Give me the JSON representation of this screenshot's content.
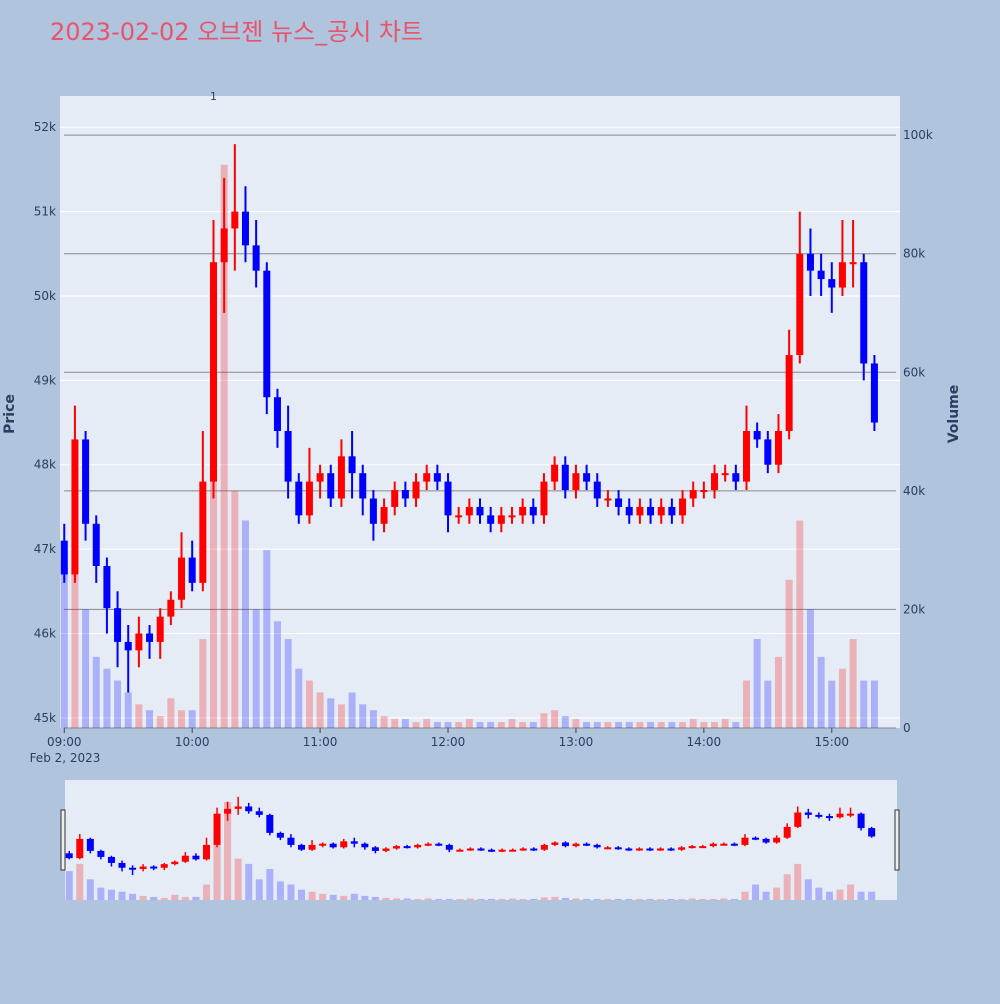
{
  "chart_data": {
    "type": "candlestick",
    "title": "2023-02-02 오브젠 뉴스_공시 차트",
    "y_label": "Price",
    "y2_label": "Volume",
    "x_date_label": "Feb 2, 2023",
    "increasing_color": "#ff0000",
    "decreasing_color": "#0000ff",
    "annotations": [
      {
        "text": "1",
        "x": "10:10"
      }
    ],
    "x": [
      "09:00",
      "09:05",
      "09:10",
      "09:15",
      "09:20",
      "09:25",
      "09:30",
      "09:35",
      "09:40",
      "09:45",
      "09:50",
      "09:55",
      "10:00",
      "10:05",
      "10:10",
      "10:15",
      "10:20",
      "10:25",
      "10:30",
      "10:35",
      "10:40",
      "10:45",
      "10:50",
      "10:55",
      "11:00",
      "11:05",
      "11:10",
      "11:15",
      "11:20",
      "11:25",
      "11:30",
      "11:35",
      "11:40",
      "11:45",
      "11:50",
      "11:55",
      "12:00",
      "12:05",
      "12:10",
      "12:15",
      "12:20",
      "12:25",
      "12:30",
      "12:35",
      "12:40",
      "12:45",
      "12:50",
      "12:55",
      "13:00",
      "13:05",
      "13:10",
      "13:15",
      "13:20",
      "13:25",
      "13:30",
      "13:35",
      "13:40",
      "13:45",
      "13:50",
      "13:55",
      "14:00",
      "14:05",
      "14:10",
      "14:15",
      "14:20",
      "14:25",
      "14:30",
      "14:35",
      "14:40",
      "14:45",
      "14:50",
      "14:55",
      "15:00",
      "15:05",
      "15:10",
      "15:15",
      "15:20"
    ],
    "open": [
      47100,
      46700,
      48300,
      47300,
      46800,
      46300,
      45900,
      45800,
      46000,
      45900,
      46200,
      46400,
      46900,
      46600,
      47800,
      50400,
      50800,
      51000,
      50600,
      50300,
      48800,
      48400,
      47800,
      47400,
      47800,
      47900,
      47600,
      48100,
      47900,
      47600,
      47300,
      47500,
      47700,
      47600,
      47800,
      47900,
      47800,
      47400,
      47400,
      47500,
      47400,
      47300,
      47400,
      47400,
      47500,
      47400,
      47800,
      48000,
      47700,
      47900,
      47800,
      47600,
      47600,
      47500,
      47400,
      47500,
      47400,
      47500,
      47400,
      47600,
      47700,
      47700,
      47900,
      47900,
      47800,
      48400,
      48300,
      48000,
      48400,
      49300,
      50500,
      50300,
      50200,
      50100,
      50400,
      50400,
      49200
    ],
    "high": [
      47300,
      48700,
      48400,
      47400,
      46900,
      46500,
      46100,
      46200,
      46100,
      46300,
      46500,
      47200,
      47100,
      48400,
      50900,
      51400,
      51800,
      51300,
      50900,
      50400,
      48900,
      48700,
      47900,
      48200,
      48000,
      48000,
      48300,
      48400,
      48000,
      47700,
      47600,
      47800,
      47800,
      47900,
      48000,
      48000,
      47900,
      47500,
      47600,
      47600,
      47500,
      47500,
      47500,
      47600,
      47600,
      47900,
      48100,
      48100,
      48000,
      48000,
      47900,
      47700,
      47700,
      47600,
      47600,
      47600,
      47600,
      47600,
      47700,
      47800,
      47800,
      48000,
      48000,
      48000,
      48700,
      48500,
      48400,
      48600,
      49600,
      51000,
      50800,
      50500,
      50400,
      50900,
      50900,
      50500,
      49300
    ],
    "low": [
      46600,
      46600,
      47100,
      46600,
      46000,
      45600,
      45300,
      45600,
      45700,
      45700,
      46100,
      46300,
      46500,
      46500,
      47600,
      49800,
      50300,
      50400,
      50100,
      48600,
      48200,
      47600,
      47300,
      47300,
      47600,
      47500,
      47500,
      47600,
      47400,
      47100,
      47200,
      47400,
      47500,
      47500,
      47700,
      47700,
      47200,
      47300,
      47300,
      47300,
      47200,
      47200,
      47300,
      47300,
      47300,
      47300,
      47700,
      47600,
      47600,
      47700,
      47500,
      47500,
      47400,
      47300,
      47300,
      47300,
      47300,
      47300,
      47300,
      47500,
      47600,
      47600,
      47800,
      47700,
      47700,
      48200,
      47900,
      47900,
      48300,
      49200,
      50000,
      50000,
      49800,
      50000,
      50100,
      49000,
      48400
    ],
    "close": [
      46700,
      48300,
      47300,
      46800,
      46300,
      45900,
      45800,
      46000,
      45900,
      46200,
      46400,
      46900,
      46600,
      47800,
      50400,
      50800,
      51000,
      50600,
      50300,
      48800,
      48400,
      47800,
      47400,
      47800,
      47900,
      47600,
      48100,
      47900,
      47600,
      47300,
      47500,
      47700,
      47600,
      47800,
      47900,
      47800,
      47400,
      47400,
      47500,
      47400,
      47300,
      47400,
      47400,
      47500,
      47400,
      47800,
      48000,
      47700,
      47900,
      47800,
      47600,
      47600,
      47500,
      47400,
      47500,
      47400,
      47500,
      47400,
      47600,
      47700,
      47700,
      47900,
      47900,
      47800,
      48400,
      48300,
      48000,
      48400,
      49300,
      50500,
      50300,
      50200,
      50100,
      50400,
      50400,
      49200,
      48500
    ],
    "volume": [
      28000,
      35000,
      20000,
      12000,
      10000,
      8000,
      6000,
      4000,
      3000,
      2000,
      5000,
      3000,
      3000,
      15000,
      60000,
      95000,
      40000,
      35000,
      20000,
      30000,
      18000,
      15000,
      10000,
      8000,
      6000,
      5000,
      4000,
      6000,
      4000,
      3000,
      2000,
      1500,
      1500,
      1000,
      1500,
      1000,
      1000,
      1000,
      1500,
      1000,
      1000,
      1000,
      1500,
      1000,
      1000,
      2500,
      3000,
      2000,
      1500,
      1000,
      1000,
      1000,
      1000,
      1000,
      1000,
      1000,
      1000,
      1000,
      1000,
      1500,
      1000,
      1000,
      1500,
      1000,
      8000,
      15000,
      8000,
      12000,
      25000,
      35000,
      20000,
      12000,
      8000,
      10000,
      15000,
      8000,
      8000
    ],
    "xlim": [
      "08:58",
      "15:32"
    ],
    "xticks": [
      "09:00",
      "10:00",
      "11:00",
      "12:00",
      "13:00",
      "14:00",
      "15:00"
    ],
    "ylim": [
      44880,
      52370
    ],
    "yticks": [
      {
        "value": 45000,
        "label": "45k"
      },
      {
        "value": 46000,
        "label": "46k"
      },
      {
        "value": 47000,
        "label": "47k"
      },
      {
        "value": 48000,
        "label": "48k"
      },
      {
        "value": 49000,
        "label": "49k"
      },
      {
        "value": 50000,
        "label": "50k"
      },
      {
        "value": 51000,
        "label": "51k"
      },
      {
        "value": 52000,
        "label": "52k"
      }
    ],
    "y2lim": [
      0,
      106600
    ],
    "y2ticks": [
      0,
      {
        "value": 20000,
        "label": "20k"
      },
      {
        "value": 40000,
        "label": "40k"
      },
      {
        "value": 60000,
        "label": "60k"
      },
      {
        "value": 80000,
        "label": "80k"
      },
      {
        "value": 100000,
        "label": "100k"
      }
    ],
    "grid": true
  }
}
